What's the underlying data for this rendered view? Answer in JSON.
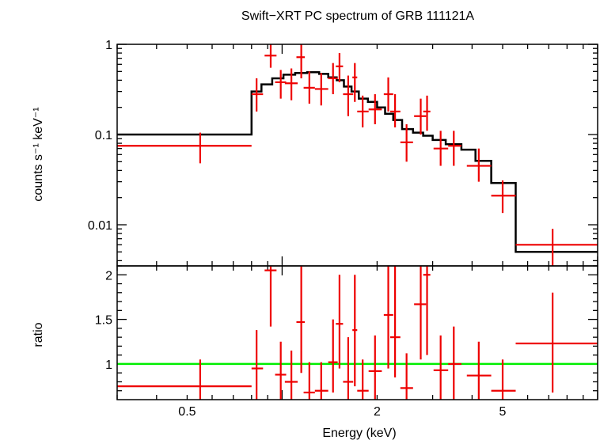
{
  "title": "Swift−XRT PC spectrum of GRB 111121A",
  "xlabel": "Energy (keV)",
  "colors": {
    "data": "#ee0000",
    "model": "#000000",
    "unity": "#00ee00",
    "axes": "#000000"
  },
  "chart_data": [
    {
      "type": "line",
      "panel": "spectrum",
      "ylabel": "counts s⁻¹ keV⁻¹",
      "xscale": "log",
      "yscale": "log",
      "xlim": [
        0.3,
        10
      ],
      "ylim": [
        0.0035,
        1.0
      ],
      "yticks": [
        {
          "v": 1,
          "label": "1"
        },
        {
          "v": 0.1,
          "label": "0.1"
        },
        {
          "v": 0.01,
          "label": "0.01"
        }
      ],
      "xticks": [
        {
          "v": 0.5,
          "label": "0.5"
        },
        {
          "v": 2,
          "label": "2"
        },
        {
          "v": 5,
          "label": "5"
        }
      ],
      "data_points": [
        {
          "x": 0.55,
          "xlo": 0.3,
          "xhi": 0.8,
          "y": 0.075,
          "ylo": 0.048,
          "yhi": 0.105
        },
        {
          "x": 0.83,
          "xlo": 0.8,
          "xhi": 0.87,
          "y": 0.28,
          "ylo": 0.18,
          "yhi": 0.42
        },
        {
          "x": 0.92,
          "xlo": 0.88,
          "xhi": 0.96,
          "y": 0.75,
          "ylo": 0.55,
          "yhi": 1.0
        },
        {
          "x": 0.99,
          "xlo": 0.95,
          "xhi": 1.03,
          "y": 0.38,
          "ylo": 0.25,
          "yhi": 0.52
        },
        {
          "x": 1.07,
          "xlo": 1.02,
          "xhi": 1.12,
          "y": 0.37,
          "ylo": 0.24,
          "yhi": 0.54
        },
        {
          "x": 1.15,
          "xlo": 1.11,
          "xhi": 1.18,
          "y": 0.72,
          "ylo": 0.42,
          "yhi": 1.0
        },
        {
          "x": 1.22,
          "xlo": 1.17,
          "xhi": 1.27,
          "y": 0.33,
          "ylo": 0.22,
          "yhi": 0.5
        },
        {
          "x": 1.33,
          "xlo": 1.27,
          "xhi": 1.4,
          "y": 0.32,
          "ylo": 0.21,
          "yhi": 0.48
        },
        {
          "x": 1.45,
          "xlo": 1.4,
          "xhi": 1.5,
          "y": 0.42,
          "ylo": 0.28,
          "yhi": 0.62
        },
        {
          "x": 1.52,
          "xlo": 1.48,
          "xhi": 1.56,
          "y": 0.57,
          "ylo": 0.38,
          "yhi": 0.8
        },
        {
          "x": 1.62,
          "xlo": 1.56,
          "xhi": 1.68,
          "y": 0.28,
          "ylo": 0.16,
          "yhi": 0.45
        },
        {
          "x": 1.7,
          "xlo": 1.67,
          "xhi": 1.73,
          "y": 0.43,
          "ylo": 0.23,
          "yhi": 0.62
        },
        {
          "x": 1.8,
          "xlo": 1.73,
          "xhi": 1.88,
          "y": 0.18,
          "ylo": 0.12,
          "yhi": 0.27
        },
        {
          "x": 1.97,
          "xlo": 1.88,
          "xhi": 2.07,
          "y": 0.19,
          "ylo": 0.13,
          "yhi": 0.28
        },
        {
          "x": 2.17,
          "xlo": 2.1,
          "xhi": 2.25,
          "y": 0.28,
          "ylo": 0.18,
          "yhi": 0.43
        },
        {
          "x": 2.28,
          "xlo": 2.2,
          "xhi": 2.37,
          "y": 0.18,
          "ylo": 0.12,
          "yhi": 0.28
        },
        {
          "x": 2.48,
          "xlo": 2.37,
          "xhi": 2.6,
          "y": 0.082,
          "ylo": 0.05,
          "yhi": 0.13
        },
        {
          "x": 2.75,
          "xlo": 2.62,
          "xhi": 2.86,
          "y": 0.16,
          "ylo": 0.1,
          "yhi": 0.25
        },
        {
          "x": 2.88,
          "xlo": 2.8,
          "xhi": 2.95,
          "y": 0.18,
          "ylo": 0.11,
          "yhi": 0.27
        },
        {
          "x": 3.18,
          "xlo": 3.02,
          "xhi": 3.36,
          "y": 0.07,
          "ylo": 0.045,
          "yhi": 0.11
        },
        {
          "x": 3.5,
          "xlo": 3.36,
          "xhi": 3.7,
          "y": 0.075,
          "ylo": 0.045,
          "yhi": 0.11
        },
        {
          "x": 4.2,
          "xlo": 3.85,
          "xhi": 4.6,
          "y": 0.045,
          "ylo": 0.03,
          "yhi": 0.07
        },
        {
          "x": 5.0,
          "xlo": 4.6,
          "xhi": 5.5,
          "y": 0.021,
          "ylo": 0.0135,
          "yhi": 0.031
        },
        {
          "x": 7.2,
          "xlo": 5.5,
          "xhi": 10,
          "y": 0.006,
          "ylo": 0.0035,
          "yhi": 0.009
        }
      ],
      "model_steps": [
        {
          "xlo": 0.3,
          "xhi": 0.8,
          "y": 0.1
        },
        {
          "xlo": 0.8,
          "xhi": 0.86,
          "y": 0.3
        },
        {
          "xlo": 0.86,
          "xhi": 0.93,
          "y": 0.36
        },
        {
          "xlo": 0.93,
          "xhi": 1.01,
          "y": 0.42
        },
        {
          "xlo": 1.01,
          "xhi": 1.1,
          "y": 0.46
        },
        {
          "xlo": 1.1,
          "xhi": 1.2,
          "y": 0.48
        },
        {
          "xlo": 1.2,
          "xhi": 1.31,
          "y": 0.49
        },
        {
          "xlo": 1.31,
          "xhi": 1.4,
          "y": 0.47
        },
        {
          "xlo": 1.4,
          "xhi": 1.49,
          "y": 0.43
        },
        {
          "xlo": 1.49,
          "xhi": 1.57,
          "y": 0.4
        },
        {
          "xlo": 1.57,
          "xhi": 1.66,
          "y": 0.34
        },
        {
          "xlo": 1.66,
          "xhi": 1.75,
          "y": 0.3
        },
        {
          "xlo": 1.75,
          "xhi": 1.87,
          "y": 0.25
        },
        {
          "xlo": 1.87,
          "xhi": 2.0,
          "y": 0.23
        },
        {
          "xlo": 2.0,
          "xhi": 2.12,
          "y": 0.2
        },
        {
          "xlo": 2.12,
          "xhi": 2.25,
          "y": 0.17
        },
        {
          "xlo": 2.25,
          "xhi": 2.4,
          "y": 0.145
        },
        {
          "xlo": 2.4,
          "xhi": 2.6,
          "y": 0.115
        },
        {
          "xlo": 2.6,
          "xhi": 2.8,
          "y": 0.105
        },
        {
          "xlo": 2.8,
          "xhi": 3.0,
          "y": 0.097
        },
        {
          "xlo": 3.0,
          "xhi": 3.3,
          "y": 0.087
        },
        {
          "xlo": 3.3,
          "xhi": 3.7,
          "y": 0.078
        },
        {
          "xlo": 3.7,
          "xhi": 4.1,
          "y": 0.068
        },
        {
          "xlo": 4.1,
          "xhi": 4.6,
          "y": 0.051
        },
        {
          "xlo": 4.6,
          "xhi": 5.5,
          "y": 0.029
        },
        {
          "xlo": 5.5,
          "xhi": 10,
          "y": 0.005
        }
      ]
    },
    {
      "type": "scatter",
      "panel": "ratio",
      "ylabel": "ratio",
      "xscale": "log",
      "yscale": "linear",
      "xlim": [
        0.3,
        10
      ],
      "ylim": [
        0.6,
        2.1
      ],
      "yticks": [
        {
          "v": 1,
          "label": "1"
        },
        {
          "v": 1.5,
          "label": "1.5"
        },
        {
          "v": 2,
          "label": "2"
        }
      ],
      "xticks": [
        {
          "v": 0.5,
          "label": "0.5"
        },
        {
          "v": 2,
          "label": "2"
        },
        {
          "v": 5,
          "label": "5"
        }
      ],
      "unity": 1,
      "data_points": [
        {
          "x": 0.55,
          "xlo": 0.3,
          "xhi": 0.8,
          "y": 0.75,
          "ylo": 0.6,
          "yhi": 1.05
        },
        {
          "x": 0.83,
          "xlo": 0.8,
          "xhi": 0.87,
          "y": 0.95,
          "ylo": 0.6,
          "yhi": 1.38
        },
        {
          "x": 0.92,
          "xlo": 0.88,
          "xhi": 0.96,
          "y": 2.05,
          "ylo": 1.42,
          "yhi": 2.1
        },
        {
          "x": 0.99,
          "xlo": 0.95,
          "xhi": 1.03,
          "y": 0.88,
          "ylo": 0.6,
          "yhi": 1.25
        },
        {
          "x": 1.07,
          "xlo": 1.02,
          "xhi": 1.12,
          "y": 0.8,
          "ylo": 0.6,
          "yhi": 1.15
        },
        {
          "x": 1.15,
          "xlo": 1.11,
          "xhi": 1.18,
          "y": 1.47,
          "ylo": 0.9,
          "yhi": 2.1
        },
        {
          "x": 1.22,
          "xlo": 1.17,
          "xhi": 1.27,
          "y": 0.68,
          "ylo": 0.6,
          "yhi": 1.02
        },
        {
          "x": 1.33,
          "xlo": 1.27,
          "xhi": 1.4,
          "y": 0.7,
          "ylo": 0.6,
          "yhi": 1.02
        },
        {
          "x": 1.45,
          "xlo": 1.4,
          "xhi": 1.5,
          "y": 1.02,
          "ylo": 0.68,
          "yhi": 1.5
        },
        {
          "x": 1.52,
          "xlo": 1.48,
          "xhi": 1.56,
          "y": 1.45,
          "ylo": 0.95,
          "yhi": 2.0
        },
        {
          "x": 1.62,
          "xlo": 1.56,
          "xhi": 1.68,
          "y": 0.8,
          "ylo": 0.6,
          "yhi": 1.3
        },
        {
          "x": 1.7,
          "xlo": 1.67,
          "xhi": 1.73,
          "y": 1.38,
          "ylo": 0.75,
          "yhi": 2.0
        },
        {
          "x": 1.8,
          "xlo": 1.73,
          "xhi": 1.88,
          "y": 0.7,
          "ylo": 0.6,
          "yhi": 1.05
        },
        {
          "x": 1.97,
          "xlo": 1.88,
          "xhi": 2.07,
          "y": 0.92,
          "ylo": 0.6,
          "yhi": 1.32
        },
        {
          "x": 2.17,
          "xlo": 2.1,
          "xhi": 2.25,
          "y": 1.55,
          "ylo": 0.95,
          "yhi": 2.1
        },
        {
          "x": 2.28,
          "xlo": 2.2,
          "xhi": 2.37,
          "y": 1.3,
          "ylo": 0.85,
          "yhi": 2.1
        },
        {
          "x": 2.48,
          "xlo": 2.37,
          "xhi": 2.6,
          "y": 0.73,
          "ylo": 0.6,
          "yhi": 1.12
        },
        {
          "x": 2.75,
          "xlo": 2.62,
          "xhi": 2.86,
          "y": 1.67,
          "ylo": 1.05,
          "yhi": 2.1
        },
        {
          "x": 2.88,
          "xlo": 2.8,
          "xhi": 2.95,
          "y": 2.0,
          "ylo": 1.1,
          "yhi": 2.1
        },
        {
          "x": 3.18,
          "xlo": 3.02,
          "xhi": 3.36,
          "y": 0.93,
          "ylo": 0.6,
          "yhi": 1.32
        },
        {
          "x": 3.5,
          "xlo": 3.36,
          "xhi": 3.7,
          "y": 1.0,
          "ylo": 0.6,
          "yhi": 1.42
        },
        {
          "x": 4.2,
          "xlo": 3.85,
          "xhi": 4.6,
          "y": 0.87,
          "ylo": 0.6,
          "yhi": 1.25
        },
        {
          "x": 5.0,
          "xlo": 4.6,
          "xhi": 5.5,
          "y": 0.7,
          "ylo": 0.6,
          "yhi": 1.05
        },
        {
          "x": 7.2,
          "xlo": 5.5,
          "xhi": 10,
          "y": 1.23,
          "ylo": 0.68,
          "yhi": 1.8
        }
      ]
    }
  ]
}
